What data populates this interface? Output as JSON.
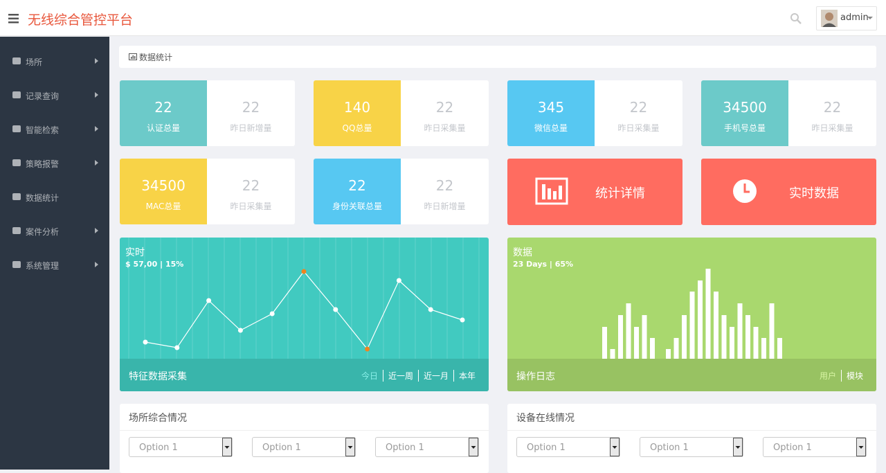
{
  "header": {
    "title": "无线综合管控平台",
    "user": "admin"
  },
  "sidebar": {
    "items": [
      {
        "label": "场所",
        "submenu": true
      },
      {
        "label": "记录查询",
        "submenu": true
      },
      {
        "label": "智能检索",
        "submenu": true
      },
      {
        "label": "策略报警",
        "submenu": true
      },
      {
        "label": "数据统计",
        "submenu": false
      },
      {
        "label": "案件分析",
        "submenu": true
      },
      {
        "label": "系统管理",
        "submenu": true
      }
    ]
  },
  "breadcrumb": "数据统计",
  "stats": [
    {
      "value": 22,
      "label": "认证总量",
      "sub_value": 22,
      "sub_label": "昨日新增量",
      "color": "#6ccac9"
    },
    {
      "value": 140,
      "label": "QQ总量",
      "sub_value": 22,
      "sub_label": "昨日采集量",
      "color": "#f8d347"
    },
    {
      "value": 345,
      "label": "微信总量",
      "sub_value": 22,
      "sub_label": "昨日采集量",
      "color": "#57c8f2"
    },
    {
      "value": 34500,
      "label": "手机号总量",
      "sub_value": 22,
      "sub_label": "昨日采集量",
      "color": "#6ccac9"
    },
    {
      "value": 34500,
      "label": "MAC总量",
      "sub_value": 22,
      "sub_label": "昨日采集量",
      "color": "#f8d347"
    },
    {
      "value": 22,
      "label": "身份关联总量",
      "sub_value": 22,
      "sub_label": "昨日新增量",
      "color": "#57c8f2"
    }
  ],
  "actions": [
    {
      "label": "统计详情",
      "icon": "chart"
    },
    {
      "label": "实时数据",
      "icon": "clock"
    }
  ],
  "realtime": {
    "type": "line",
    "title": "实时",
    "subtitle": "$ 57,00 | 15%",
    "footer": "特征数据采集",
    "tabs": [
      "今日",
      "近一周",
      "近一月",
      "本年"
    ],
    "active_tab": 0,
    "color": "#41cac0",
    "values": [
      24,
      16,
      84,
      41,
      65,
      126,
      71,
      14,
      113,
      71,
      56
    ],
    "point_colors": [
      "#ffffff",
      "#ffffff",
      "#ffffff",
      "#ffffff",
      "#ffffff",
      "#f0841f",
      "#ffffff",
      "#f0841f",
      "#ffffff",
      "#ffffff",
      "#ffffff"
    ]
  },
  "log_chart": {
    "type": "bar",
    "title": "数据",
    "subtitle": "23 Days | 65%",
    "footer": "操作日志",
    "tabs": [
      "用户",
      "模块"
    ],
    "active_tab": 0,
    "color": "#a9d86e",
    "values": [
      46,
      14,
      63,
      80,
      46,
      63,
      30,
      0,
      14,
      30,
      63,
      97,
      113,
      130,
      97,
      63,
      46,
      80,
      63,
      46,
      30,
      80,
      30
    ]
  },
  "panels": [
    {
      "title": "场所综合情况",
      "selects": [
        "Option 1",
        "Option 1",
        "Option 1"
      ]
    },
    {
      "title": "设备在线情况",
      "selects": [
        "Option 1",
        "Option 1",
        "Option 1"
      ]
    }
  ]
}
